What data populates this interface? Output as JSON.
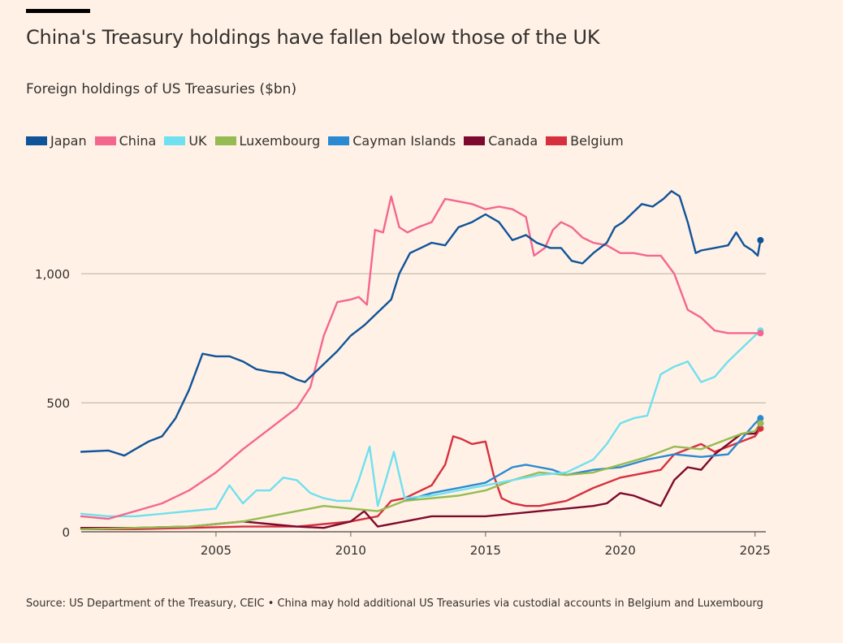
{
  "title": "China's Treasury holdings have fallen below those of the UK",
  "subtitle": "Foreign holdings of US Treasuries ($bn)",
  "source": "Source: US Department of the Treasury, CEIC • China may hold additional US Treasuries via custodial accounts in Belgium and Luxembourg",
  "legend": [
    {
      "name": "Japan",
      "color": "#0f5499"
    },
    {
      "name": "China",
      "color": "#f3678e"
    },
    {
      "name": "UK",
      "color": "#6fe0f0"
    },
    {
      "name": "Luxembourg",
      "color": "#96bb52"
    },
    {
      "name": "Cayman Islands",
      "color": "#2a8ad1"
    },
    {
      "name": "Canada",
      "color": "#7d0a2e"
    },
    {
      "name": "Belgium",
      "color": "#d6303f"
    }
  ],
  "chart_data": {
    "type": "line",
    "title": "China's Treasury holdings have fallen below those of the UK",
    "ylabel": "Foreign holdings of US Treasuries ($bn)",
    "xlim": [
      2000.0,
      2025.4
    ],
    "ylim": [
      0,
      1400
    ],
    "yticks": [
      0,
      500,
      1000
    ],
    "ytick_labels": [
      "0",
      "500",
      "1,000"
    ],
    "xticks": [
      2005,
      2010,
      2015,
      2020,
      2025
    ],
    "grid": true,
    "legend_position": "top-left",
    "series": [
      {
        "name": "Japan",
        "color": "#0f5499",
        "x": [
          2000.0,
          2001.0,
          2001.6,
          2002.0,
          2002.5,
          2003.0,
          2003.5,
          2004.0,
          2004.5,
          2005.0,
          2005.5,
          2006.0,
          2006.5,
          2007.0,
          2007.5,
          2008.0,
          2008.3,
          2008.6,
          2009.0,
          2009.5,
          2010.0,
          2010.5,
          2011.0,
          2011.5,
          2011.8,
          2012.2,
          2012.6,
          2013.0,
          2013.5,
          2014.0,
          2014.5,
          2015.0,
          2015.5,
          2016.0,
          2016.5,
          2016.9,
          2017.4,
          2017.8,
          2018.2,
          2018.6,
          2019.0,
          2019.5,
          2019.8,
          2020.1,
          2020.4,
          2020.8,
          2021.2,
          2021.6,
          2021.9,
          2022.2,
          2022.5,
          2022.8,
          2023.0,
          2023.5,
          2024.0,
          2024.3,
          2024.6,
          2024.9,
          2025.1,
          2025.2
        ],
        "y": [
          310,
          315,
          295,
          320,
          350,
          370,
          440,
          550,
          690,
          680,
          680,
          660,
          630,
          620,
          615,
          590,
          580,
          610,
          650,
          700,
          760,
          800,
          850,
          900,
          1000,
          1080,
          1100,
          1120,
          1110,
          1180,
          1200,
          1230,
          1200,
          1130,
          1150,
          1120,
          1100,
          1100,
          1050,
          1040,
          1080,
          1120,
          1180,
          1200,
          1230,
          1270,
          1260,
          1290,
          1320,
          1300,
          1200,
          1080,
          1090,
          1100,
          1110,
          1160,
          1110,
          1090,
          1070,
          1130
        ]
      },
      {
        "name": "China",
        "color": "#f3678e",
        "x": [
          2000.0,
          2001.0,
          2002.0,
          2003.0,
          2004.0,
          2005.0,
          2006.0,
          2007.0,
          2008.0,
          2008.5,
          2009.0,
          2009.5,
          2010.0,
          2010.3,
          2010.6,
          2010.9,
          2011.2,
          2011.5,
          2011.8,
          2012.1,
          2012.5,
          2013.0,
          2013.5,
          2014.0,
          2014.5,
          2015.0,
          2015.5,
          2016.0,
          2016.5,
          2016.8,
          2017.2,
          2017.5,
          2017.8,
          2018.2,
          2018.6,
          2019.0,
          2019.5,
          2020.0,
          2020.5,
          2021.0,
          2021.5,
          2022.0,
          2022.5,
          2023.0,
          2023.5,
          2024.0,
          2024.5,
          2025.0,
          2025.2
        ],
        "y": [
          60,
          50,
          80,
          110,
          160,
          230,
          320,
          400,
          480,
          560,
          760,
          890,
          900,
          910,
          880,
          1170,
          1160,
          1300,
          1180,
          1160,
          1180,
          1200,
          1290,
          1280,
          1270,
          1250,
          1260,
          1250,
          1220,
          1070,
          1100,
          1170,
          1200,
          1180,
          1140,
          1120,
          1110,
          1080,
          1080,
          1070,
          1070,
          1000,
          860,
          830,
          780,
          770,
          770,
          770,
          770
        ]
      },
      {
        "name": "UK",
        "color": "#6fe0f0",
        "x": [
          2000.0,
          2001.0,
          2002.0,
          2003.0,
          2004.0,
          2005.0,
          2005.5,
          2006.0,
          2006.5,
          2007.0,
          2007.5,
          2008.0,
          2008.5,
          2009.0,
          2009.5,
          2010.0,
          2010.3,
          2010.7,
          2011.0,
          2011.3,
          2011.6,
          2012.0,
          2013.0,
          2014.0,
          2015.0,
          2016.0,
          2017.0,
          2018.0,
          2019.0,
          2019.5,
          2020.0,
          2020.5,
          2021.0,
          2021.5,
          2022.0,
          2022.5,
          2023.0,
          2023.5,
          2024.0,
          2024.5,
          2025.0,
          2025.2
        ],
        "y": [
          70,
          60,
          60,
          70,
          80,
          90,
          180,
          110,
          160,
          160,
          210,
          200,
          150,
          130,
          120,
          120,
          200,
          330,
          100,
          200,
          310,
          130,
          140,
          160,
          180,
          200,
          220,
          230,
          280,
          340,
          420,
          440,
          450,
          610,
          640,
          660,
          580,
          600,
          660,
          710,
          760,
          780
        ]
      },
      {
        "name": "Luxembourg",
        "color": "#96bb52",
        "x": [
          2000.0,
          2002.0,
          2004.0,
          2006.0,
          2007.0,
          2008.0,
          2009.0,
          2010.0,
          2011.0,
          2012.0,
          2013.0,
          2014.0,
          2015.0,
          2016.0,
          2017.0,
          2018.0,
          2019.0,
          2020.0,
          2021.0,
          2022.0,
          2023.0,
          2024.0,
          2024.5,
          2025.0,
          2025.2
        ],
        "y": [
          10,
          15,
          20,
          40,
          60,
          80,
          100,
          90,
          80,
          120,
          130,
          140,
          160,
          200,
          230,
          220,
          230,
          260,
          290,
          330,
          320,
          360,
          380,
          390,
          420
        ]
      },
      {
        "name": "Cayman Islands",
        "color": "#2a8ad1",
        "x": [
          2012.0,
          2013.0,
          2014.0,
          2015.0,
          2016.0,
          2016.5,
          2017.0,
          2017.5,
          2018.0,
          2019.0,
          2020.0,
          2021.0,
          2022.0,
          2023.0,
          2024.0,
          2024.5,
          2025.0,
          2025.2
        ],
        "y": [
          120,
          150,
          170,
          190,
          250,
          260,
          250,
          240,
          220,
          240,
          250,
          280,
          300,
          290,
          300,
          360,
          420,
          440
        ]
      },
      {
        "name": "Canada",
        "color": "#7d0a2e",
        "x": [
          2000.0,
          2002.0,
          2004.0,
          2005.0,
          2006.0,
          2007.0,
          2008.0,
          2009.0,
          2010.0,
          2010.5,
          2011.0,
          2012.0,
          2013.0,
          2014.0,
          2015.0,
          2016.0,
          2017.0,
          2018.0,
          2019.0,
          2019.5,
          2020.0,
          2020.5,
          2021.0,
          2021.5,
          2022.0,
          2022.5,
          2023.0,
          2023.5,
          2024.0,
          2024.5,
          2025.0,
          2025.2
        ],
        "y": [
          15,
          15,
          20,
          30,
          40,
          30,
          20,
          15,
          40,
          80,
          20,
          40,
          60,
          60,
          60,
          70,
          80,
          90,
          100,
          110,
          150,
          140,
          120,
          100,
          200,
          250,
          240,
          300,
          340,
          380,
          380,
          420
        ]
      },
      {
        "name": "Belgium",
        "color": "#d6303f",
        "x": [
          2000.0,
          2002.0,
          2004.0,
          2006.0,
          2008.0,
          2009.0,
          2010.0,
          2011.0,
          2011.5,
          2012.0,
          2013.0,
          2013.5,
          2013.8,
          2014.1,
          2014.5,
          2015.0,
          2015.3,
          2015.6,
          2016.0,
          2016.5,
          2017.0,
          2018.0,
          2019.0,
          2020.0,
          2021.0,
          2021.5,
          2022.0,
          2023.0,
          2023.5,
          2024.0,
          2024.5,
          2025.0,
          2025.2
        ],
        "y": [
          10,
          10,
          15,
          20,
          20,
          30,
          40,
          60,
          120,
          130,
          180,
          260,
          370,
          360,
          340,
          350,
          220,
          130,
          110,
          100,
          100,
          120,
          170,
          210,
          230,
          240,
          300,
          340,
          310,
          330,
          350,
          370,
          400
        ]
      }
    ]
  }
}
